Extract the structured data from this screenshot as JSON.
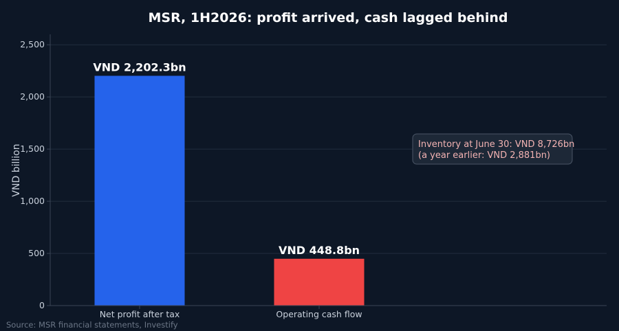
{
  "chart_data": {
    "type": "bar",
    "title": "MSR, 1H2026: profit arrived, cash lagged behind",
    "xlabel": "",
    "ylabel": "VND billion",
    "categories": [
      "Net profit after tax",
      "Operating cash flow"
    ],
    "values": [
      2202.3,
      448.8
    ],
    "data_labels": [
      "VND 2,202.3bn",
      "VND 448.8bn"
    ],
    "colors": [
      "#2563eb",
      "#ef4444"
    ],
    "ylim": [
      0,
      2600
    ],
    "yticks": [
      0,
      500,
      1000,
      1500,
      2000,
      2500
    ],
    "ytick_labels": [
      "0",
      "500",
      "1,000",
      "1,500",
      "2,000",
      "2,500"
    ],
    "grid": true,
    "annotation": {
      "lines": [
        "Inventory at June 30: VND 8,726bn",
        "(a year earlier: VND 2,881bn)"
      ]
    },
    "source": "Source: MSR financial statements, Investify"
  }
}
